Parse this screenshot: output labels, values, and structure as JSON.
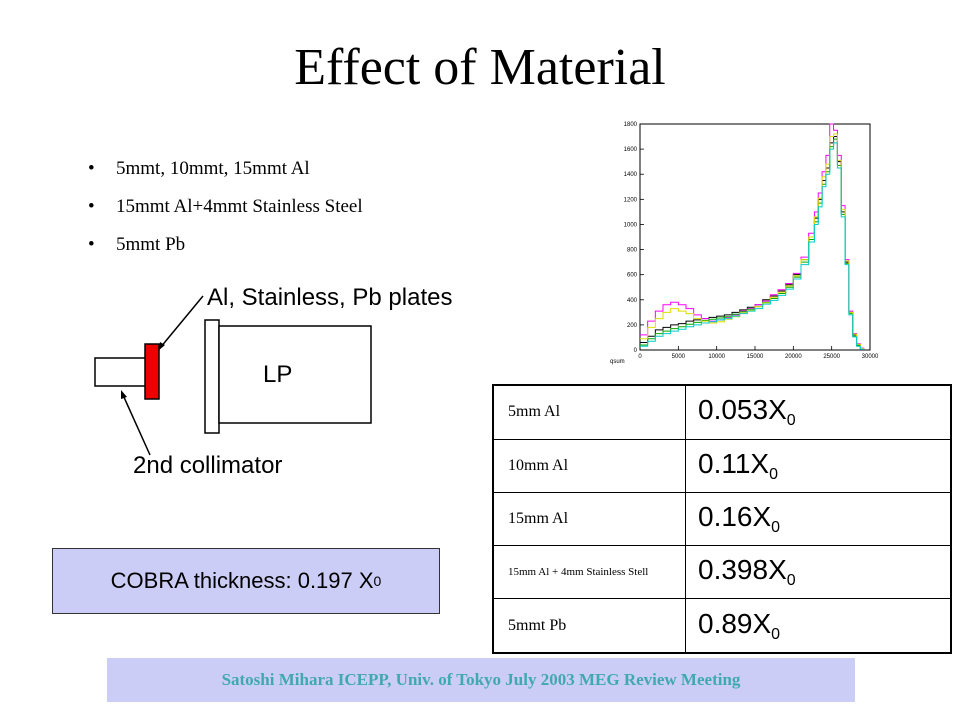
{
  "slide": {
    "title": "Effect of Material",
    "bullets": [
      "5mmt, 10mmt, 15mmt Al",
      "15mmt Al+4mmt Stainless Steel",
      "5mmt Pb"
    ]
  },
  "diagram": {
    "plates_label": "Al, Stainless, Pb plates",
    "lp_label": "LP",
    "collimator_label": "2nd collimator"
  },
  "cobra": {
    "text": "COBRA thickness: 0.197 X",
    "sub": "0"
  },
  "table": {
    "rows": [
      {
        "material": "5mm Al",
        "value": "0.053X",
        "sub": "0"
      },
      {
        "material": "10mm Al",
        "value": "0.11X",
        "sub": "0"
      },
      {
        "material": "15mm Al",
        "value": "0.16X",
        "sub": "0"
      },
      {
        "material": "15mm Al + 4mm Stainless Stell",
        "value": "0.398X",
        "sub": "0"
      },
      {
        "material": "5mmt Pb",
        "value": "0.89X",
        "sub": "0"
      }
    ]
  },
  "footer": "Satoshi Mihara ICEPP, Univ. of Tokyo July 2003 MEG Review Meeting",
  "chart_data": {
    "type": "line",
    "title": "",
    "xlabel": "qsum",
    "ylabel": "",
    "xlim": [
      0,
      30000
    ],
    "ylim": [
      0,
      1800
    ],
    "x_ticks": [
      "0",
      "5000",
      "10000",
      "15000",
      "20000",
      "25000",
      "30000"
    ],
    "y_ticks": [
      "0",
      "200",
      "400",
      "600",
      "800",
      "1000",
      "1200",
      "1400",
      "1600",
      "1800"
    ],
    "x": [
      500,
      1500,
      2500,
      3500,
      4500,
      5500,
      6500,
      7500,
      8500,
      9500,
      10500,
      11500,
      12500,
      13500,
      14500,
      15500,
      16500,
      17500,
      18500,
      19500,
      20500,
      21500,
      22500,
      23000,
      23500,
      24000,
      24500,
      25000,
      25500,
      26000,
      26500,
      27000,
      27500,
      28000,
      28500,
      29000
    ],
    "series": [
      {
        "color": "#000000",
        "values": [
          60,
          110,
          160,
          180,
          200,
          210,
          230,
          240,
          250,
          260,
          270,
          280,
          300,
          320,
          340,
          360,
          400,
          430,
          470,
          520,
          600,
          720,
          900,
          1050,
          1200,
          1350,
          1450,
          1650,
          1700,
          1500,
          1100,
          700,
          300,
          120,
          40,
          10
        ]
      },
      {
        "color": "#ff00ff",
        "values": [
          120,
          230,
          310,
          360,
          380,
          360,
          330,
          280,
          250,
          230,
          240,
          260,
          280,
          310,
          330,
          360,
          390,
          440,
          480,
          530,
          610,
          740,
          930,
          1100,
          1250,
          1420,
          1550,
          1800,
          1750,
          1550,
          1150,
          720,
          310,
          130,
          50,
          15
        ]
      },
      {
        "color": "#00aa00",
        "values": [
          40,
          90,
          130,
          150,
          170,
          185,
          205,
          220,
          235,
          245,
          255,
          265,
          285,
          305,
          325,
          345,
          380,
          410,
          450,
          500,
          580,
          700,
          880,
          1020,
          1170,
          1320,
          1420,
          1620,
          1680,
          1470,
          1080,
          690,
          290,
          110,
          35,
          8
        ]
      },
      {
        "color": "#dddd00",
        "values": [
          90,
          180,
          250,
          300,
          330,
          310,
          290,
          250,
          230,
          215,
          225,
          245,
          265,
          295,
          315,
          345,
          375,
          420,
          460,
          510,
          590,
          720,
          900,
          1060,
          1210,
          1380,
          1480,
          1700,
          1720,
          1510,
          1120,
          710,
          300,
          125,
          45,
          12
        ]
      },
      {
        "color": "#00cccc",
        "values": [
          30,
          70,
          110,
          130,
          150,
          165,
          185,
          200,
          215,
          225,
          240,
          250,
          270,
          290,
          310,
          330,
          365,
          395,
          435,
          485,
          565,
          680,
          860,
          1000,
          1140,
          1300,
          1400,
          1600,
          1650,
          1450,
          1060,
          680,
          280,
          105,
          30,
          6
        ]
      }
    ]
  }
}
